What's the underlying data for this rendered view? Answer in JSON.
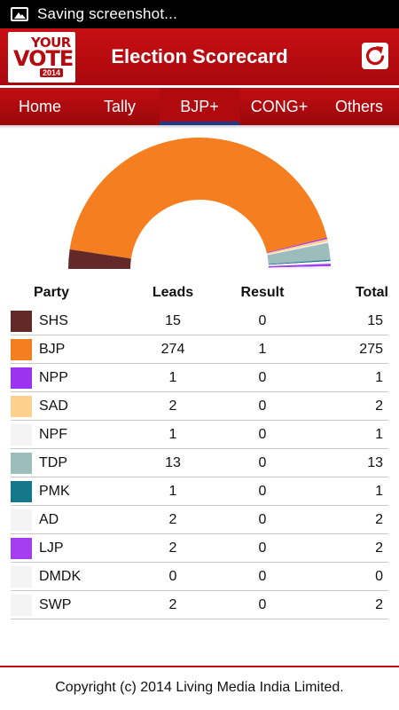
{
  "status_bar": {
    "notification": "Saving screenshot..."
  },
  "app": {
    "title": "Election Scorecard",
    "logo": {
      "line1": "YOUR",
      "line2": "VOTE",
      "line3": "2014"
    }
  },
  "tabs": [
    {
      "label": "Home",
      "active": false
    },
    {
      "label": "Tally",
      "active": false
    },
    {
      "label": "BJP+",
      "active": true
    },
    {
      "label": "CONG+",
      "active": false
    },
    {
      "label": "Others",
      "active": false
    }
  ],
  "table": {
    "headers": {
      "party": "Party",
      "leads": "Leads",
      "result": "Result",
      "total": "Total"
    },
    "rows": [
      {
        "party": "SHS",
        "leads": "15",
        "result": "0",
        "total": "15",
        "color": "#632929"
      },
      {
        "party": "BJP",
        "leads": "274",
        "result": "1",
        "total": "275",
        "color": "#f57f20"
      },
      {
        "party": "NPP",
        "leads": "1",
        "result": "0",
        "total": "1",
        "color": "#9b33f0"
      },
      {
        "party": "SAD",
        "leads": "2",
        "result": "0",
        "total": "2",
        "color": "#fdd08e"
      },
      {
        "party": "NPF",
        "leads": "1",
        "result": "0",
        "total": "1",
        "color": "#f4f4f4"
      },
      {
        "party": "TDP",
        "leads": "13",
        "result": "0",
        "total": "13",
        "color": "#9dbcbc"
      },
      {
        "party": "PMK",
        "leads": "1",
        "result": "0",
        "total": "1",
        "color": "#14788a"
      },
      {
        "party": "AD",
        "leads": "2",
        "result": "0",
        "total": "2",
        "color": "#f4f4f4"
      },
      {
        "party": "LJP",
        "leads": "2",
        "result": "0",
        "total": "2",
        "color": "#a43ef0"
      },
      {
        "party": "DMDK",
        "leads": "0",
        "result": "0",
        "total": "0",
        "color": "#f4f4f4"
      },
      {
        "party": "SWP",
        "leads": "2",
        "result": "0",
        "total": "2",
        "color": "#f4f4f4"
      }
    ]
  },
  "chart_data": {
    "type": "pie",
    "style": "half-donut",
    "categories": [
      "SHS",
      "BJP",
      "NPP",
      "SAD",
      "NPF",
      "TDP",
      "PMK",
      "AD",
      "LJP",
      "DMDK",
      "SWP"
    ],
    "values": [
      15,
      275,
      1,
      2,
      1,
      13,
      1,
      2,
      2,
      0,
      2
    ],
    "colors": [
      "#632929",
      "#f57f20",
      "#9b33f0",
      "#fdd08e",
      "#f4f4f4",
      "#9dbcbc",
      "#14788a",
      "#f4f4f4",
      "#a43ef0",
      "#f4f4f4",
      "#f4f4f4"
    ]
  },
  "footer": {
    "copyright": "Copyright (c) 2014 Living Media India Limited."
  }
}
